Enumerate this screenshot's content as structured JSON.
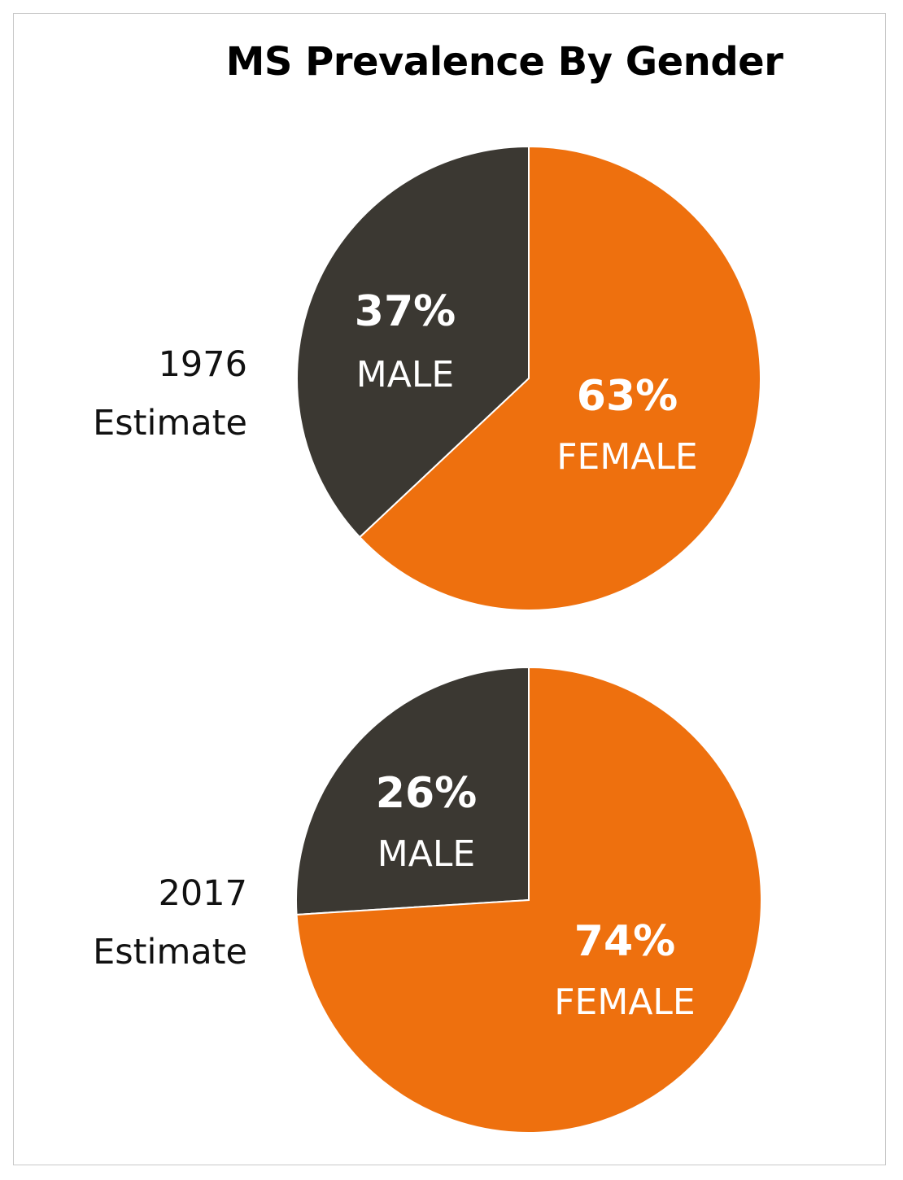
{
  "chart_data": [
    {
      "type": "pie",
      "title": "MS Prevalence By Gender",
      "label": [
        "1976",
        "Estimate"
      ],
      "slices": [
        {
          "name": "MALE",
          "value": 37,
          "value_label": "37%",
          "color": "#3b3832"
        },
        {
          "name": "FEMALE",
          "value": 63,
          "value_label": "63%",
          "color": "#ee700e"
        }
      ]
    },
    {
      "type": "pie",
      "label": [
        "2017",
        "Estimate"
      ],
      "slices": [
        {
          "name": "MALE",
          "value": 26,
          "value_label": "26%",
          "color": "#3b3832"
        },
        {
          "name": "FEMALE",
          "value": 74,
          "value_label": "74%",
          "color": "#ee700e"
        }
      ]
    }
  ]
}
